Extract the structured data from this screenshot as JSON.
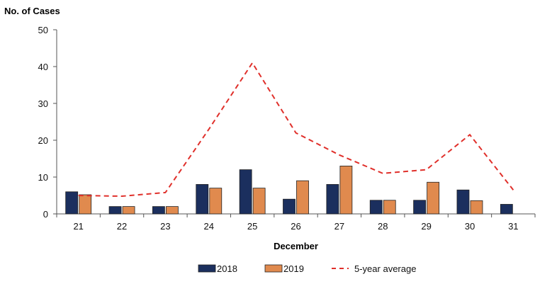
{
  "chart_data": {
    "type": "bar",
    "ylabel": "No. of Cases",
    "xlabel": "December",
    "ylim": [
      0,
      50
    ],
    "yticks": [
      0,
      10,
      20,
      30,
      40,
      50
    ],
    "categories": [
      "21",
      "22",
      "23",
      "24",
      "25",
      "26",
      "27",
      "28",
      "29",
      "30",
      "31"
    ],
    "series": [
      {
        "name": "2018",
        "kind": "bar",
        "color": "#1b2f5e",
        "values": [
          6,
          2,
          2,
          8,
          12,
          4,
          8,
          3.7,
          3.7,
          6.5,
          2.6
        ]
      },
      {
        "name": "2019",
        "kind": "bar",
        "color": "#e08a4e",
        "values": [
          5.2,
          2,
          2,
          7,
          7,
          9,
          13,
          3.7,
          8.6,
          3.6,
          null
        ]
      },
      {
        "name": "5-year average",
        "kind": "line",
        "color": "#e0302b",
        "dashed": true,
        "values": [
          5,
          4.8,
          5.8,
          23,
          41,
          22,
          16,
          11,
          12,
          21.5,
          6.5
        ]
      }
    ],
    "legend_position": "bottom",
    "grid": false
  }
}
